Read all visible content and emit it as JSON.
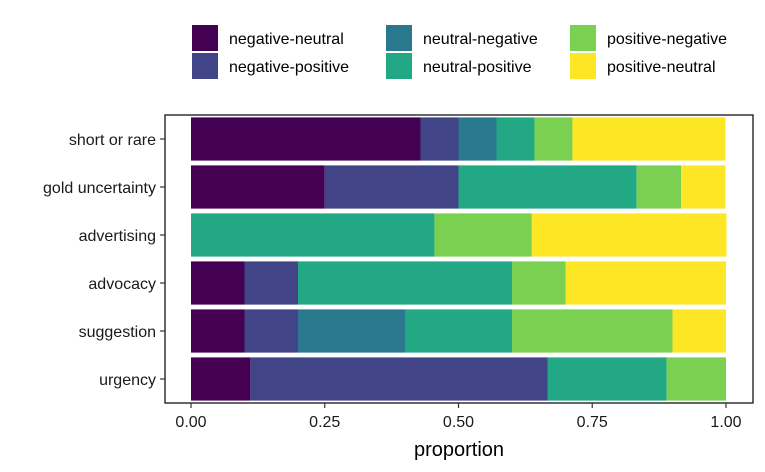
{
  "chart_data": {
    "type": "bar",
    "orientation": "horizontal",
    "stacked": true,
    "xlabel": "proportion",
    "ylabel": "",
    "xlim": [
      0,
      1
    ],
    "x_ticks": [
      "0.00",
      "0.25",
      "0.50",
      "0.75",
      "1.00"
    ],
    "x_tick_values": [
      0,
      0.25,
      0.5,
      0.75,
      1.0
    ],
    "categories": [
      "short or rare",
      "gold uncertainty",
      "advertising",
      "advocacy",
      "suggestion",
      "urgency"
    ],
    "legend_position": "top",
    "grid": false,
    "series": [
      {
        "name": "negative-neutral",
        "color": "#440154",
        "values": [
          0.429,
          0.25,
          0.0,
          0.1,
          0.1,
          0.111
        ]
      },
      {
        "name": "negative-positive",
        "color": "#414487",
        "values": [
          0.071,
          0.25,
          0.0,
          0.1,
          0.1,
          0.556
        ]
      },
      {
        "name": "neutral-negative",
        "color": "#2A788E",
        "values": [
          0.071,
          0.0,
          0.0,
          0.0,
          0.2,
          0.0
        ]
      },
      {
        "name": "neutral-positive",
        "color": "#22A884",
        "values": [
          0.071,
          0.333,
          0.455,
          0.4,
          0.2,
          0.222
        ]
      },
      {
        "name": "positive-negative",
        "color": "#7AD151",
        "values": [
          0.071,
          0.083,
          0.182,
          0.1,
          0.3,
          0.111
        ]
      },
      {
        "name": "positive-neutral",
        "color": "#FDE725",
        "values": [
          0.286,
          0.083,
          0.364,
          0.3,
          0.1,
          0.0
        ]
      }
    ]
  }
}
